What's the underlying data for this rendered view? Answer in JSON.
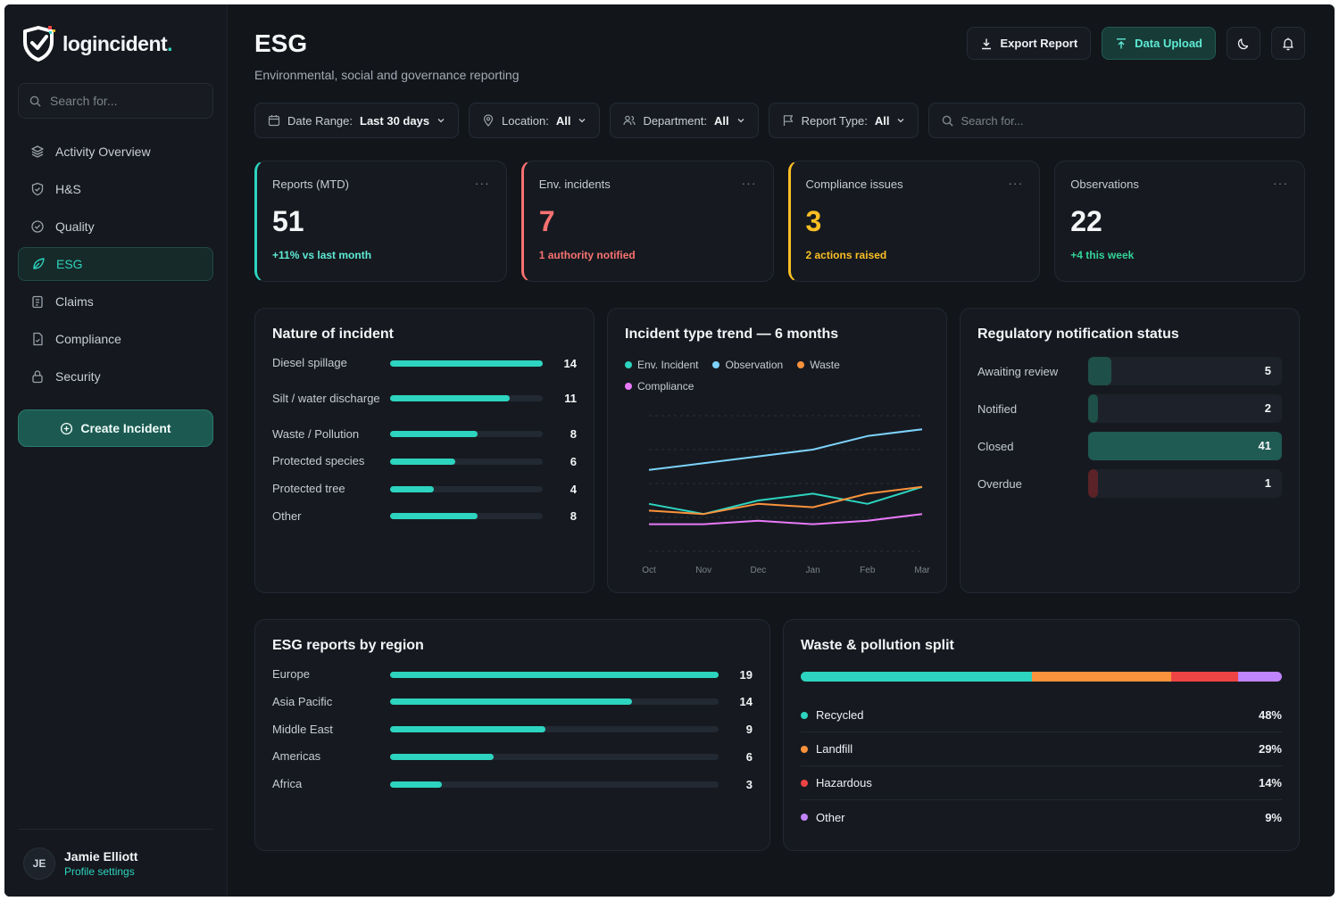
{
  "app": {
    "logo_text": "logincident",
    "logo_dot": "."
  },
  "sidebar": {
    "search_placeholder": "Search for...",
    "items": [
      {
        "label": "Activity Overview",
        "icon": "layers-icon"
      },
      {
        "label": "H&S",
        "icon": "shield-icon"
      },
      {
        "label": "Quality",
        "icon": "check-circle-icon"
      },
      {
        "label": "ESG",
        "icon": "leaf-icon",
        "active": true
      },
      {
        "label": "Claims",
        "icon": "clipboard-icon"
      },
      {
        "label": "Compliance",
        "icon": "document-icon"
      },
      {
        "label": "Security",
        "icon": "lock-icon"
      }
    ],
    "create_label": "Create Incident",
    "profile": {
      "initials": "JE",
      "name": "Jamie Elliott",
      "link": "Profile settings"
    }
  },
  "header": {
    "title": "ESG",
    "subtitle": "Environmental, social and governance reporting",
    "export_label": "Export Report",
    "upload_label": "Data Upload"
  },
  "filters": {
    "date": {
      "label": "Date Range:",
      "value": "Last 30 days"
    },
    "location": {
      "label": "Location:",
      "value": "All"
    },
    "department": {
      "label": "Department:",
      "value": "All"
    },
    "report_type": {
      "label": "Report Type:",
      "value": "All"
    },
    "search_placeholder": "Search for..."
  },
  "kpis": [
    {
      "label": "Reports (MTD)",
      "value": "51",
      "note": "+11% vs last month",
      "value_color": "#f4f5f7",
      "note_color": "#5eead4"
    },
    {
      "label": "Env. incidents",
      "value": "7",
      "note": "1 authority notified",
      "value_color": "#f87171",
      "note_color": "#f87171"
    },
    {
      "label": "Compliance issues",
      "value": "3",
      "note": "2 actions raised",
      "value_color": "#fbbf24",
      "note_color": "#fbbf24"
    },
    {
      "label": "Observations",
      "value": "22",
      "note": "+4 this week",
      "value_color": "#f4f5f7",
      "note_color": "#34d399"
    }
  ],
  "nature": {
    "title": "Nature of incident",
    "max": 14,
    "rows": [
      {
        "label": "Diesel spillage",
        "value": 14
      },
      {
        "label": "Silt / water discharge",
        "value": 11
      },
      {
        "label": "Waste / Pollution",
        "value": 8
      },
      {
        "label": "Protected species",
        "value": 6
      },
      {
        "label": "Protected tree",
        "value": 4
      },
      {
        "label": "Other",
        "value": 8
      }
    ]
  },
  "trend": {
    "title": "Incident type trend — 6 months",
    "chart_data": {
      "type": "line",
      "x": [
        "Oct",
        "Nov",
        "Dec",
        "Jan",
        "Feb",
        "Mar"
      ],
      "series": [
        {
          "name": "Env. Incident",
          "color": "#2dd4bf",
          "values": [
            14,
            11,
            15,
            17,
            14,
            19
          ]
        },
        {
          "name": "Observation",
          "color": "#7dd3fc",
          "values": [
            24,
            26,
            28,
            30,
            34,
            36
          ]
        },
        {
          "name": "Waste",
          "color": "#fb923c",
          "values": [
            12,
            11,
            14,
            13,
            17,
            19
          ]
        },
        {
          "name": "Compliance",
          "color": "#e879f9",
          "values": [
            8,
            8,
            9,
            8,
            9,
            11
          ]
        }
      ],
      "ylim": [
        0,
        40
      ],
      "grid": true
    }
  },
  "regulatory": {
    "title": "Regulatory notification status",
    "max": 41,
    "rows": [
      {
        "label": "Awaiting review",
        "value": 5,
        "color": "#1f4f49"
      },
      {
        "label": "Notified",
        "value": 2,
        "color": "#1f4f49"
      },
      {
        "label": "Closed",
        "value": 41,
        "color": "#1f5a53"
      },
      {
        "label": "Overdue",
        "value": 1,
        "color": "#5b2328"
      }
    ]
  },
  "region": {
    "title": "ESG reports by region",
    "max": 19,
    "rows": [
      {
        "label": "Europe",
        "value": 19
      },
      {
        "label": "Asia Pacific",
        "value": 14
      },
      {
        "label": "Middle East",
        "value": 9
      },
      {
        "label": "Americas",
        "value": 6
      },
      {
        "label": "Africa",
        "value": 3
      }
    ]
  },
  "waste": {
    "title": "Waste & pollution split",
    "rows": [
      {
        "label": "Recycled",
        "pct": 48,
        "text": "48%",
        "color": "#2dd4bf"
      },
      {
        "label": "Landfill",
        "pct": 29,
        "text": "29%",
        "color": "#fb923c"
      },
      {
        "label": "Hazardous",
        "pct": 14,
        "text": "14%",
        "color": "#ef4444"
      },
      {
        "label": "Other",
        "pct": 9,
        "text": "9%",
        "color": "#c084fc"
      }
    ]
  }
}
